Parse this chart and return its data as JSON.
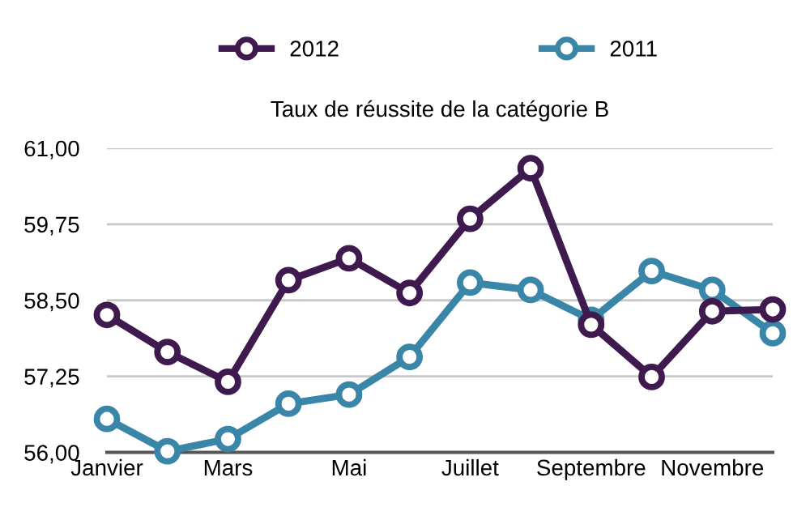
{
  "chart_data": {
    "type": "line",
    "title": "Taux de réussite de la catégorie B",
    "categories": [
      "Janvier",
      null,
      "Mars",
      null,
      "Mai",
      null,
      "Juillet",
      null,
      "Septembre",
      null,
      "Novembre",
      null
    ],
    "series": [
      {
        "name": "2012",
        "color": "#3e1a4e",
        "values": [
          58.26,
          57.65,
          57.16,
          58.83,
          59.19,
          58.62,
          59.84,
          60.67,
          58.1,
          57.24,
          58.32,
          58.35
        ]
      },
      {
        "name": "2011",
        "color": "#3a86a8",
        "values": [
          56.55,
          56.02,
          56.22,
          56.8,
          56.95,
          57.57,
          58.79,
          58.67,
          58.18,
          58.98,
          58.67,
          57.96
        ]
      }
    ],
    "ylim": [
      56,
      61
    ],
    "yticks": [
      {
        "value": 56,
        "label": "56,00"
      },
      {
        "value": 57.25,
        "label": "57,25"
      },
      {
        "value": 58.5,
        "label": "58,50"
      },
      {
        "value": 59.75,
        "label": "59,75"
      },
      {
        "value": 61,
        "label": "61,00"
      }
    ],
    "grid": "y",
    "legend": "top",
    "marker": "circle",
    "line_style": "solid"
  }
}
